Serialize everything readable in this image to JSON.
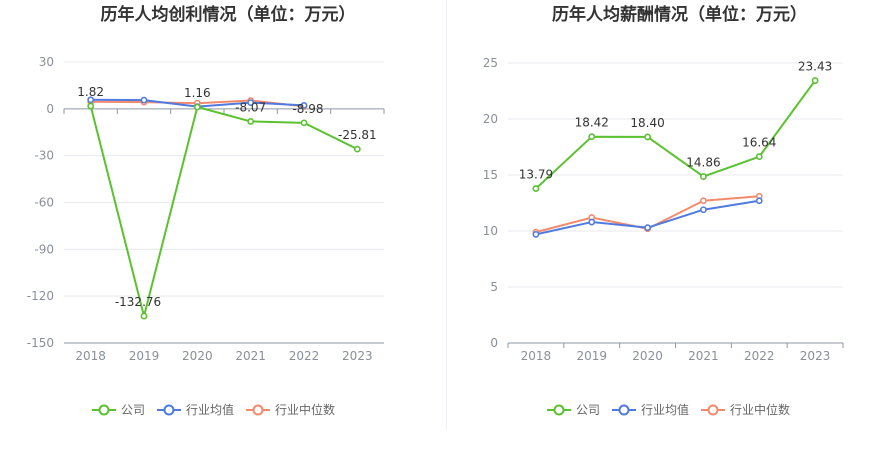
{
  "chart_data": [
    {
      "type": "line",
      "title": "历年人均创利情况（单位：万元）",
      "categories": [
        "2018",
        "2019",
        "2020",
        "2021",
        "2022",
        "2023"
      ],
      "ylim": [
        -150,
        30
      ],
      "yticks": [
        30,
        0,
        -30,
        -60,
        -90,
        -120,
        -150
      ],
      "grid": true,
      "legend_position": "bottom",
      "series": [
        {
          "name": "公司",
          "color": "#5ac12f",
          "values": [
            1.82,
            -132.76,
            1.16,
            -8.07,
            -8.98,
            -25.81
          ]
        },
        {
          "name": "行业均值",
          "color": "#4f7be0",
          "values": [
            5.8,
            5.6,
            1.4,
            4.0,
            2.2,
            null
          ]
        },
        {
          "name": "行业中位数",
          "color": "#f28a6b",
          "values": [
            4.5,
            4.3,
            3.6,
            5.3,
            1.6,
            null
          ]
        }
      ],
      "data_labels": [
        {
          "series": 0,
          "index": 0,
          "text": "1.82"
        },
        {
          "series": 0,
          "index": 1,
          "text": "-132.76"
        },
        {
          "series": 0,
          "index": 2,
          "text": "1.16"
        },
        {
          "series": 0,
          "index": 3,
          "text": "-8.07"
        },
        {
          "series": 0,
          "index": 4,
          "text": "-8.98"
        },
        {
          "series": 0,
          "index": 5,
          "text": "-25.81"
        }
      ]
    },
    {
      "type": "line",
      "title": "历年人均薪酬情况（单位：万元）",
      "categories": [
        "2018",
        "2019",
        "2020",
        "2021",
        "2022",
        "2023"
      ],
      "ylim": [
        0,
        25
      ],
      "yticks": [
        25,
        20,
        15,
        10,
        5,
        0
      ],
      "grid": true,
      "legend_position": "bottom",
      "series": [
        {
          "name": "公司",
          "color": "#5ac12f",
          "values": [
            13.79,
            18.42,
            18.4,
            14.86,
            16.64,
            23.43
          ]
        },
        {
          "name": "行业均值",
          "color": "#4f7be0",
          "values": [
            9.7,
            10.8,
            10.3,
            11.9,
            12.7,
            null
          ]
        },
        {
          "name": "行业中位数",
          "color": "#f28a6b",
          "values": [
            9.9,
            11.2,
            10.2,
            12.7,
            13.1,
            null
          ]
        }
      ],
      "data_labels": [
        {
          "series": 0,
          "index": 0,
          "text": "13.79"
        },
        {
          "series": 0,
          "index": 1,
          "text": "18.42"
        },
        {
          "series": 0,
          "index": 2,
          "text": "18.40"
        },
        {
          "series": 0,
          "index": 3,
          "text": "14.86"
        },
        {
          "series": 0,
          "index": 4,
          "text": "16.64"
        },
        {
          "series": 0,
          "index": 5,
          "text": "23.43"
        }
      ]
    }
  ]
}
